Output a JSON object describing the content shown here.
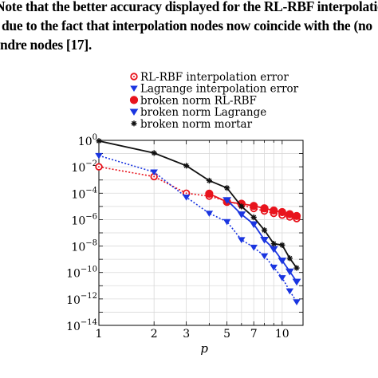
{
  "document": {
    "lines": [
      "Note that the better accuracy displayed for the RL-RBF interpolation",
      "due to the fact that interpolation nodes now coincide with the (no",
      "ndre nodes [17]."
    ]
  },
  "chart_data": {
    "type": "line",
    "title": "",
    "xlabel": "p",
    "ylabel": "",
    "xscale": "log",
    "yscale": "log",
    "xlim": [
      1,
      13
    ],
    "ylim": [
      1e-14,
      1
    ],
    "grid": true,
    "legend_position": "top-center (outside, above plot)",
    "x_ticks": [
      1,
      2,
      3,
      5,
      7,
      10
    ],
    "x_tick_labels": [
      "1",
      "2",
      "3",
      "5",
      "7",
      "10"
    ],
    "y_ticks": [
      1,
      0.01,
      0.0001,
      1e-06,
      1e-08,
      1e-10,
      1e-12,
      1e-14
    ],
    "y_tick_labels": [
      {
        "base": "10",
        "exp": "0"
      },
      {
        "base": "10",
        "exp": "−2"
      },
      {
        "base": "10",
        "exp": "−4"
      },
      {
        "base": "10",
        "exp": "−6"
      },
      {
        "base": "10",
        "exp": "−8"
      },
      {
        "base": "10",
        "exp": "−10"
      },
      {
        "base": "10",
        "exp": "−12"
      },
      {
        "base": "10",
        "exp": "−14"
      }
    ],
    "series": [
      {
        "name": "RL-RBF interpolation error",
        "color": "#e8141d",
        "line": "dotted",
        "marker": "open-circle",
        "x": [
          1,
          2,
          3,
          4,
          5,
          6,
          7,
          8,
          9,
          10,
          11,
          12
        ],
        "y": [
          0.01,
          0.0018,
          0.0001,
          6e-05,
          2.5e-05,
          1.3e-05,
          7e-06,
          4.5e-06,
          3e-06,
          2.2e-06,
          1.6e-06,
          1.2e-06
        ]
      },
      {
        "name": "Lagrange interpolation error",
        "color": "#1a35e0",
        "line": "dotted",
        "marker": "triangle-down",
        "x": [
          1,
          2,
          3,
          4,
          5,
          6,
          7,
          8,
          9,
          10,
          11,
          12
        ],
        "y": [
          0.07,
          0.004,
          5e-05,
          3e-06,
          7e-07,
          3e-08,
          8e-09,
          1.8e-09,
          2.5e-10,
          4e-11,
          4e-12,
          6e-13
        ]
      },
      {
        "name": "broken norm RL-RBF",
        "color": "#e8141d",
        "line": "solid",
        "marker": "filled-circle",
        "x": [
          4,
          5,
          6,
          7,
          8,
          9,
          10,
          11,
          12
        ],
        "y": [
          9.2e-05,
          2.2e-05,
          1.6e-05,
          1.1e-05,
          7.2e-06,
          4.9e-06,
          3.7e-06,
          2.6e-06,
          1.9e-06
        ]
      },
      {
        "name": "broken norm Lagrange",
        "color": "#1a35e0",
        "line": "solid",
        "marker": "triangle-down-filled",
        "x": [
          5,
          6,
          7,
          8,
          9,
          10,
          11,
          12
        ],
        "y": [
          3e-05,
          2.5e-06,
          4.5e-07,
          3e-08,
          6e-09,
          8e-10,
          1.2e-10,
          2e-11
        ]
      },
      {
        "name": "broken norm mortar",
        "color": "#111111",
        "line": "solid",
        "marker": "star",
        "x": [
          1,
          2,
          3,
          4,
          5,
          6,
          7,
          8,
          9,
          10,
          11,
          12
        ],
        "y": [
          0.9,
          0.11,
          0.012,
          0.0009,
          0.00025,
          1e-05,
          1.5e-06,
          1.6e-07,
          1.5e-08,
          1.2e-08,
          1.2e-09,
          2.2e-10
        ]
      }
    ]
  }
}
